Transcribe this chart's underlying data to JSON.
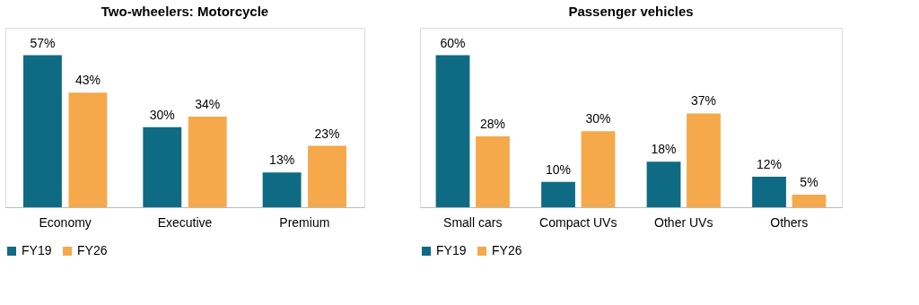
{
  "chart_data": [
    {
      "type": "bar",
      "title": "Two-wheelers: Motorcycle",
      "categories": [
        "Economy",
        "Executive",
        "Premium"
      ],
      "series": [
        {
          "name": "FY19",
          "color": "#0f6b84",
          "values": [
            57,
            30,
            13
          ],
          "value_labels": [
            "57%",
            "30%",
            "13%"
          ]
        },
        {
          "name": "FY26",
          "color": "#f5a94a",
          "values": [
            43,
            34,
            23
          ],
          "value_labels": [
            "43%",
            "34%",
            "23%"
          ]
        }
      ],
      "legend": "bottom",
      "grid": false,
      "tick_labels": "x"
    },
    {
      "type": "bar",
      "title": "Passenger vehicles",
      "categories": [
        "Small cars",
        "Compact UVs",
        "Other UVs",
        "Others"
      ],
      "series": [
        {
          "name": "FY19",
          "color": "#0f6b84",
          "values": [
            60,
            10,
            18,
            12
          ],
          "value_labels": [
            "60%",
            "10%",
            "18%",
            "12%"
          ]
        },
        {
          "name": "FY26",
          "color": "#f5a94a",
          "values": [
            28,
            30,
            37,
            5
          ],
          "value_labels": [
            "28%",
            "30%",
            "37%",
            "5%"
          ]
        }
      ],
      "legend": "bottom",
      "grid": false,
      "tick_labels": "x"
    }
  ]
}
